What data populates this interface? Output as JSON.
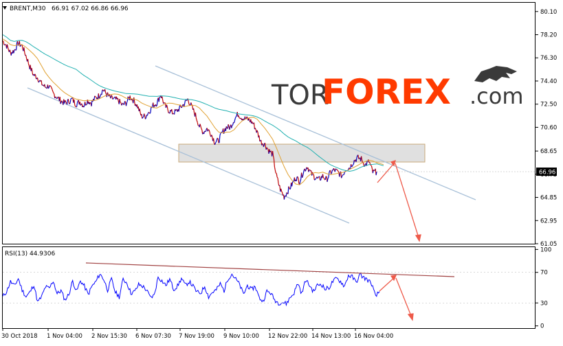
{
  "header": {
    "symbol_label": "BRENT,M30",
    "ohlc_text": "66.91 67.02 66.86 66.96"
  },
  "watermark": {
    "part1": "TOR",
    "part2": "FOREX",
    "part3": ".com",
    "icon": "bull-logo-icon",
    "colors": {
      "tor": "#3a3a3a",
      "forex": "#ff3a00",
      "com": "#3a3a3a"
    }
  },
  "colors": {
    "price": "#c00000",
    "price_down": "#0000c0",
    "ma_fast": "#e0a030",
    "ma_slow": "#20b0b0",
    "channel": "#a8c0d8",
    "zone_fill": "#d8d8d8",
    "forecast": "#ee5a4a",
    "rsi_line": "#0000ff",
    "rsi_trend": "#a04040",
    "axis_text": "#000000"
  },
  "chart_data": [
    {
      "type": "line",
      "panel": "price",
      "ylim": [
        61.05,
        80.82
      ],
      "y_ticks": [
        "80.10",
        "78.20",
        "76.30",
        "74.40",
        "72.50",
        "70.60",
        "68.65",
        "66.75",
        "64.85",
        "62.95",
        "61.05"
      ],
      "current_price_label": "66.96",
      "x_ticks": [
        "30 Oct 2018",
        "1 Nov 04:00",
        "2 Nov 15:30",
        "6 Nov 07:30",
        "7 Nov 19:00",
        "9 Nov 10:00",
        "12 Nov 22:00",
        "14 Nov 13:00",
        "16 Nov 04:00"
      ],
      "series": [
        {
          "values": [
            77.7,
            77.3,
            76.7,
            76.9,
            77.5,
            77.3,
            76.5,
            75.6,
            74.9,
            74.7,
            74.2,
            73.9,
            74.0,
            73.4,
            73.1,
            72.8,
            72.6,
            72.7,
            72.9,
            72.5,
            72.7,
            72.4,
            72.8,
            72.6,
            73.0,
            73.2,
            73.7,
            73.3,
            73.0,
            72.9,
            72.8,
            72.4,
            72.6,
            73.1,
            72.8,
            72.3,
            71.5,
            71.5,
            71.9,
            72.4,
            72.6,
            73.3,
            72.4,
            72.0,
            71.8,
            71.9,
            72.2,
            72.5,
            72.9,
            72.3,
            71.6,
            70.7,
            70.2,
            70.5,
            70.1,
            69.4,
            69.5,
            70.2,
            70.6,
            70.6,
            71.2,
            71.7,
            71.4,
            71.3,
            71.2,
            70.9,
            70.2,
            69.4,
            69.2,
            68.7,
            68.4,
            66.6,
            65.5,
            64.9,
            65.4,
            65.9,
            66.5,
            66.2,
            67.0,
            67.4,
            66.8,
            66.5,
            66.3,
            66.6,
            66.3,
            66.9,
            67.1,
            66.9,
            66.6,
            67.2,
            67.3,
            67.8,
            68.1,
            68.0,
            67.5,
            67.8,
            66.9,
            66.96
          ]
        }
      ]
    },
    {
      "type": "line",
      "panel": "rsi",
      "title": "RSI(13) 44.9306",
      "ylim": [
        -3,
        103
      ],
      "y_ticks": [
        "100",
        "70",
        "30",
        "0"
      ],
      "series": [
        {
          "values": [
            38,
            45,
            58,
            52,
            62,
            47,
            38,
            44,
            54,
            31,
            38,
            51,
            49,
            59,
            42,
            46,
            34,
            41,
            59,
            45,
            59,
            52,
            41,
            52,
            58,
            68,
            61,
            47,
            61,
            44,
            38,
            61,
            56,
            43,
            45,
            54,
            52,
            47,
            37,
            40,
            64,
            59,
            53,
            61,
            48,
            52,
            62,
            53,
            58,
            52,
            44,
            43,
            52,
            38,
            44,
            47,
            55,
            46,
            62,
            68,
            61,
            54,
            41,
            53,
            47,
            52,
            37,
            32,
            45,
            43,
            34,
            30,
            31,
            29,
            37,
            43,
            56,
            42,
            60,
            53,
            45,
            53,
            55,
            48,
            50,
            58,
            62,
            58,
            52,
            66,
            64,
            57,
            67,
            63,
            60,
            55,
            38,
            45
          ]
        }
      ]
    }
  ]
}
